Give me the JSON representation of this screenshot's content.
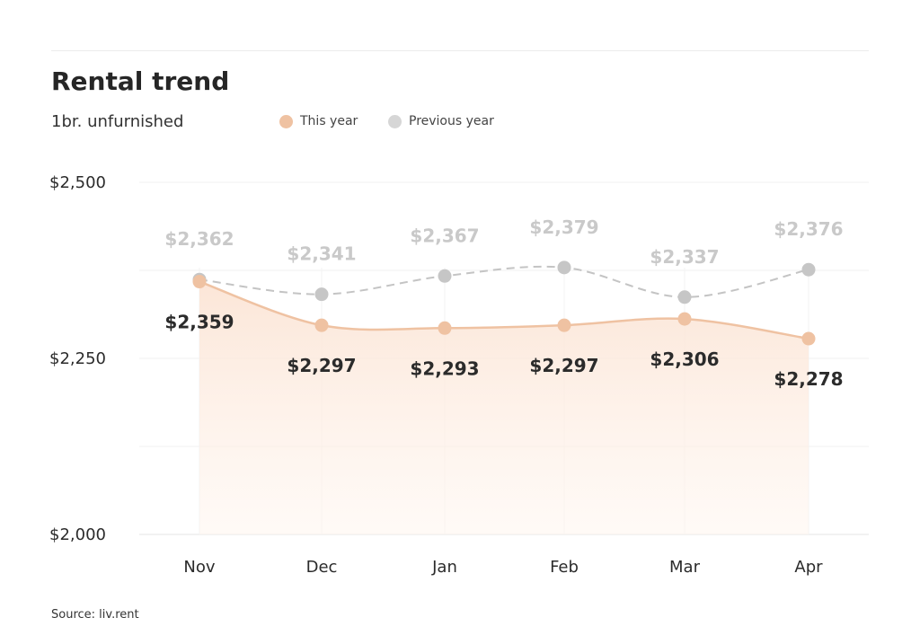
{
  "header": {
    "title": "Rental trend",
    "subtitle": "1br. unfurnished"
  },
  "legend": {
    "this_year": "This year",
    "previous_year": "Previous year"
  },
  "source": "Source: liv.rent",
  "colors": {
    "this_year": "#efc2a2",
    "previous_year": "#c4c4c4",
    "area_fill": "#fdeee3"
  },
  "chart_data": {
    "type": "line",
    "title": "Rental trend",
    "subtitle": "1br. unfurnished",
    "categories": [
      "Nov",
      "Dec",
      "Jan",
      "Feb",
      "Mar",
      "Apr"
    ],
    "series": [
      {
        "name": "This year",
        "values": [
          2359,
          2297,
          2293,
          2297,
          2306,
          2278
        ],
        "labels": [
          "$2,359",
          "$2,297",
          "$2,293",
          "$2,297",
          "$2,306",
          "$2,278"
        ]
      },
      {
        "name": "Previous year",
        "values": [
          2362,
          2341,
          2367,
          2379,
          2337,
          2376
        ],
        "labels": [
          "$2,362",
          "$2,341",
          "$2,367",
          "$2,379",
          "$2,337",
          "$2,376"
        ]
      }
    ],
    "y_ticks": [
      "$2,500",
      "$2,250",
      "$2,000"
    ],
    "y_tick_values": [
      2500,
      2250,
      2000
    ],
    "ylim": [
      2000,
      2500
    ],
    "grid": true,
    "legend_position": "top"
  }
}
